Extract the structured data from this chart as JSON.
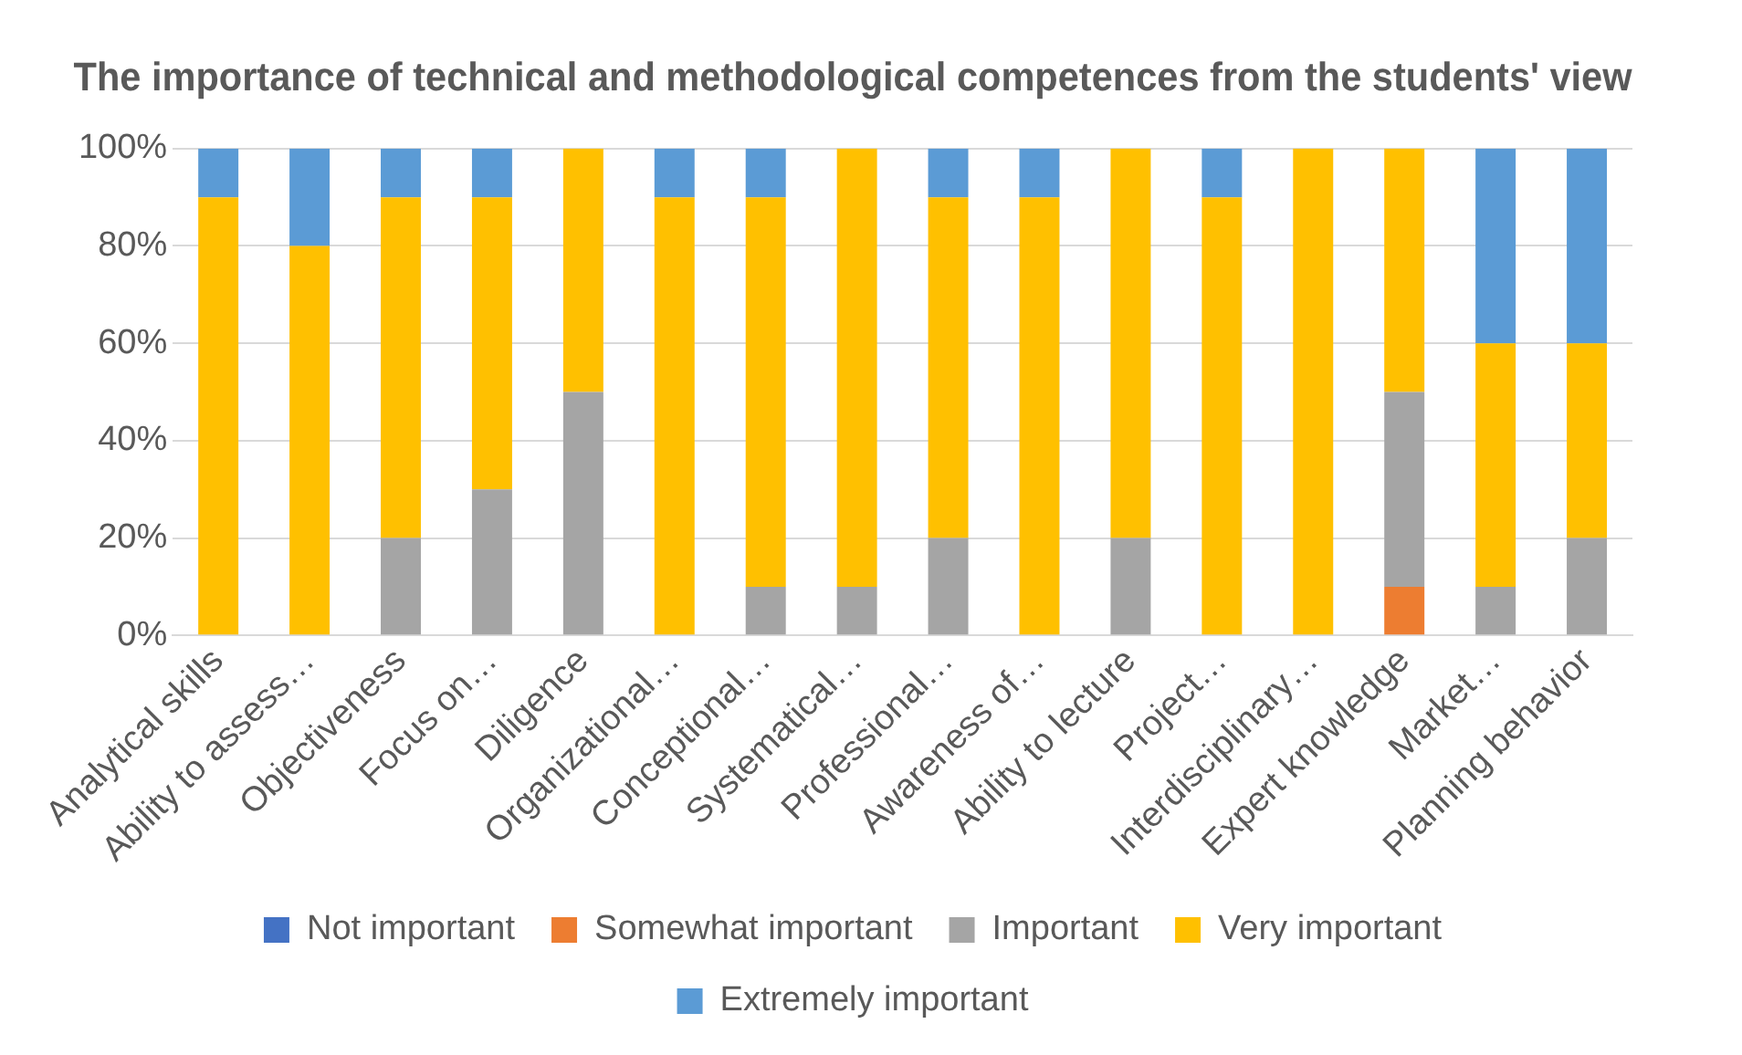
{
  "chart_data": {
    "type": "bar",
    "stacked": true,
    "title": "The importance of technical and methodological competences from the students' view",
    "categories": [
      "Analytical skills",
      "Ability to assess…",
      "Objectiveness",
      "Focus on…",
      "Diligence",
      "Organizational…",
      "Conceptional…",
      "Systematical…",
      "Professional…",
      "Awareness of…",
      "Ability to lecture",
      "Project…",
      "Interdisciplinary…",
      "Expert knowledge",
      "Market…",
      "Planning behavior"
    ],
    "series": [
      {
        "name": "Not important",
        "color": "#4472c4",
        "values": [
          0,
          0,
          0,
          0,
          0,
          0,
          0,
          0,
          0,
          0,
          0,
          0,
          0,
          0,
          0,
          0
        ]
      },
      {
        "name": "Somewhat important",
        "color": "#ed7d31",
        "values": [
          0,
          0,
          0,
          0,
          0,
          0,
          0,
          0,
          0,
          0,
          0,
          0,
          0,
          10,
          0,
          0
        ]
      },
      {
        "name": "Important",
        "color": "#a5a5a5",
        "values": [
          0,
          0,
          20,
          30,
          50,
          0,
          10,
          10,
          20,
          0,
          20,
          0,
          0,
          40,
          10,
          20
        ]
      },
      {
        "name": "Very important",
        "color": "#ffc000",
        "values": [
          90,
          80,
          70,
          60,
          50,
          90,
          80,
          90,
          70,
          90,
          80,
          90,
          100,
          50,
          50,
          40
        ]
      },
      {
        "name": "Extremely important",
        "color": "#5b9bd5",
        "values": [
          10,
          20,
          10,
          10,
          0,
          10,
          10,
          0,
          10,
          10,
          0,
          10,
          0,
          0,
          40,
          40
        ]
      }
    ],
    "ylim": [
      0,
      100
    ],
    "yticks": [
      {
        "value": 0,
        "label": "0%"
      },
      {
        "value": 20,
        "label": "20%"
      },
      {
        "value": 40,
        "label": "40%"
      },
      {
        "value": 60,
        "label": "60%"
      },
      {
        "value": 80,
        "label": "80%"
      },
      {
        "value": 100,
        "label": "100%"
      }
    ],
    "grid": "y",
    "legend": "bottom"
  }
}
